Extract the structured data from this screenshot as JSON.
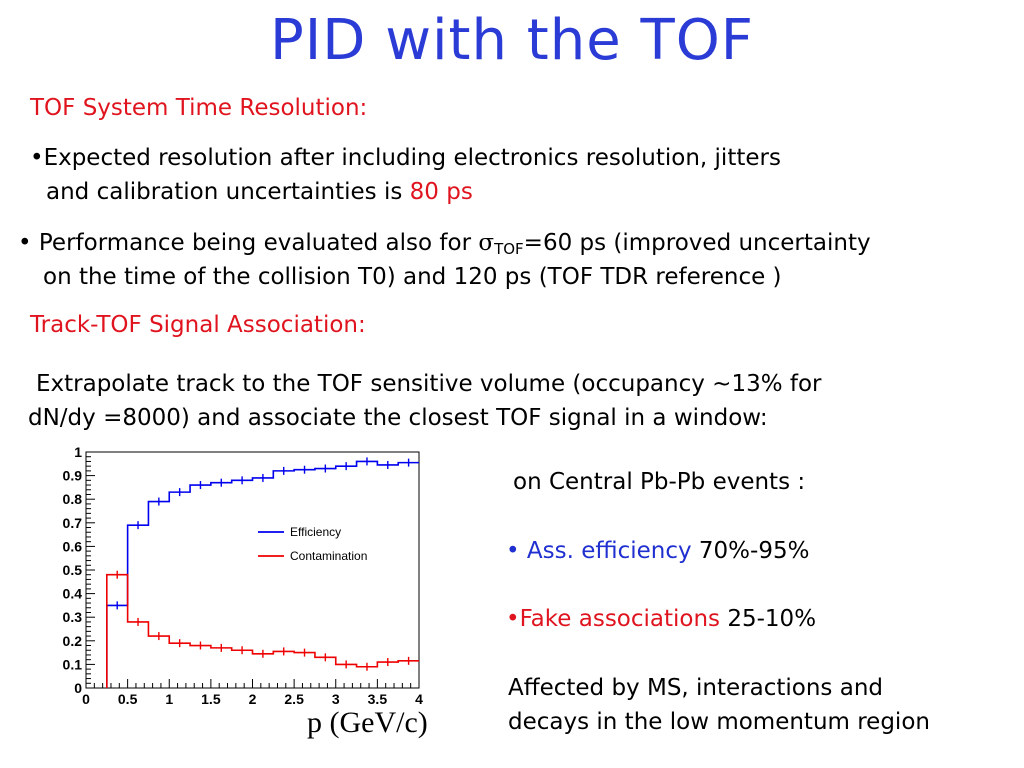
{
  "title": "PID with the TOF",
  "section1_heading": "TOF System Time Resolution:",
  "bullet1": {
    "line1": "•Expected resolution after including electronics resolution, jitters",
    "line2_prefix": "and calibration uncertainties is ",
    "line2_highlight": "80 ps"
  },
  "bullet2": {
    "line1_prefix": "• Performance being evaluated also for ",
    "sigma": "σ",
    "subscript": "TOF",
    "line1_suffix": "=60 ps (improved uncertainty",
    "line2": "on the time of the collision T0) and 120 ps (TOF TDR reference )"
  },
  "section2_heading": "Track-TOF Signal Association:",
  "para": {
    "line1": "Extrapolate track to the TOF sensitive volume  (occupancy ~13% for",
    "line2": "dN/dy =8000) and associate the closest TOF signal in a window:"
  },
  "right": {
    "events": "on Central Pb-Pb events :",
    "eff_label": "• Ass. efficiency",
    "eff_value": " 70%-95%",
    "fake_label": "•Fake associations",
    "fake_value": " 25-10%",
    "affected1": "Affected by MS, interactions and",
    "affected2": "decays in the low momentum region"
  },
  "colors": {
    "title": "#2b3bd6",
    "red": "#e0141e",
    "blue": "#1f2fd0",
    "efficiency": "#0000ee",
    "contamination": "#ee0000"
  },
  "chart_data": {
    "type": "line",
    "xlabel": "p (GeV/c)",
    "ylabel": "",
    "xlim": [
      0,
      4
    ],
    "ylim": [
      0,
      1
    ],
    "x_ticks": [
      "0",
      "0.5",
      "1",
      "1.5",
      "2",
      "2.5",
      "3",
      "3.5",
      "4"
    ],
    "y_ticks": [
      "0",
      "0.1",
      "0.2",
      "0.3",
      "0.4",
      "0.5",
      "0.6",
      "0.7",
      "0.8",
      "0.9",
      "1"
    ],
    "legend_position": "center-right",
    "bin_width": 0.25,
    "series": [
      {
        "name": "Efficiency",
        "color": "#0000ee",
        "x": [
          0.375,
          0.625,
          0.875,
          1.125,
          1.375,
          1.625,
          1.875,
          2.125,
          2.375,
          2.625,
          2.875,
          3.125,
          3.375,
          3.625,
          3.875
        ],
        "values": [
          0.35,
          0.69,
          0.79,
          0.83,
          0.86,
          0.87,
          0.88,
          0.89,
          0.92,
          0.925,
          0.93,
          0.94,
          0.96,
          0.945,
          0.955
        ]
      },
      {
        "name": "Contamination",
        "color": "#ee0000",
        "x": [
          0.375,
          0.625,
          0.875,
          1.125,
          1.375,
          1.625,
          1.875,
          2.125,
          2.375,
          2.625,
          2.875,
          3.125,
          3.375,
          3.625,
          3.875
        ],
        "values": [
          0.48,
          0.28,
          0.22,
          0.19,
          0.18,
          0.17,
          0.16,
          0.145,
          0.155,
          0.15,
          0.13,
          0.1,
          0.09,
          0.11,
          0.115
        ]
      }
    ]
  }
}
